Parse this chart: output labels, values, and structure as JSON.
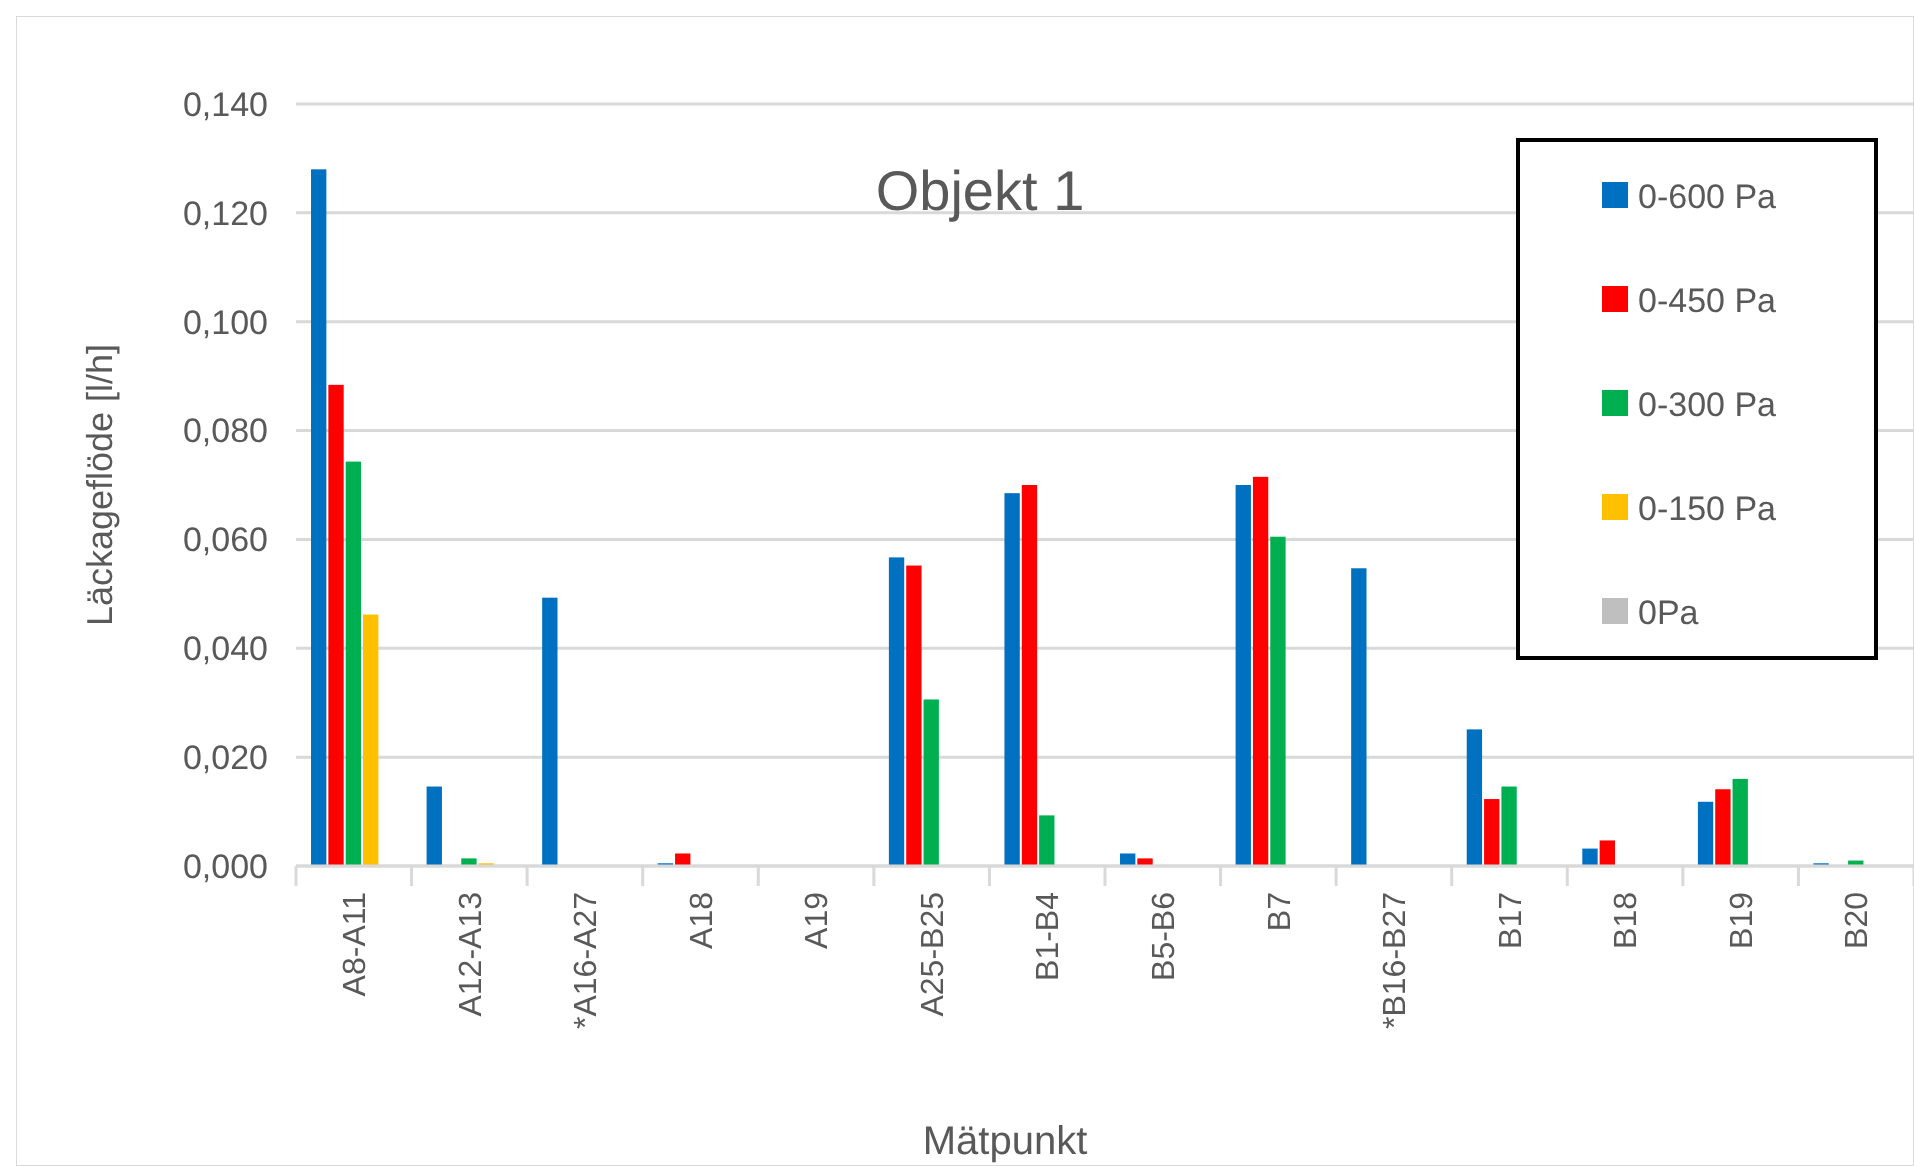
{
  "chart_data": {
    "type": "bar",
    "title": "Objekt 1",
    "xlabel": "Mätpunkt",
    "ylabel": "Läckageflöde [l/h]",
    "categories": [
      "A8-A11",
      "A12-A13",
      "*A16-A27",
      "A18",
      "A19",
      "A25-B25",
      "B1-B4",
      "B5-B6",
      "B7",
      "*B16-B27",
      "B17",
      "B18",
      "B19",
      "B20"
    ],
    "series": [
      {
        "name": "0-600 Pa",
        "color": "#0070c0",
        "values": [
          0.128,
          0.0146,
          0.0493,
          0.0005,
          null,
          0.0567,
          0.0685,
          0.0023,
          0.07,
          0.0547,
          0.0251,
          0.0032,
          0.0118,
          0.0005
        ]
      },
      {
        "name": "0-450 Pa",
        "color": "#ff0000",
        "values": [
          0.0884,
          null,
          null,
          0.0023,
          null,
          0.0552,
          0.07,
          0.0014,
          0.0715,
          null,
          0.0123,
          0.0047,
          0.0141,
          null
        ]
      },
      {
        "name": "0-300 Pa",
        "color": "#00b050",
        "values": [
          0.0743,
          0.0014,
          null,
          null,
          null,
          0.0306,
          0.0093,
          null,
          0.0605,
          null,
          0.0146,
          null,
          0.016,
          0.001
        ]
      },
      {
        "name": "0-150 Pa",
        "color": "#ffc000",
        "values": [
          0.0462,
          0.0005,
          null,
          null,
          null,
          null,
          null,
          null,
          null,
          null,
          null,
          null,
          null,
          null
        ]
      },
      {
        "name": "0Pa",
        "color": "#bfbfbf",
        "values": [
          null,
          null,
          null,
          null,
          null,
          null,
          null,
          null,
          null,
          null,
          null,
          null,
          null,
          null
        ]
      }
    ],
    "ylim": [
      0,
      0.14
    ],
    "yticks": [
      {
        "value": 0,
        "label": "0,000"
      },
      {
        "value": 0.02,
        "label": "0,020"
      },
      {
        "value": 0.04,
        "label": "0,040"
      },
      {
        "value": 0.06,
        "label": "0,060"
      },
      {
        "value": 0.08,
        "label": "0,080"
      },
      {
        "value": 0.1,
        "label": "0,100"
      },
      {
        "value": 0.12,
        "label": "0,120"
      },
      {
        "value": 0.14,
        "label": "0,140"
      }
    ],
    "grid": "y",
    "legend": "top right"
  }
}
